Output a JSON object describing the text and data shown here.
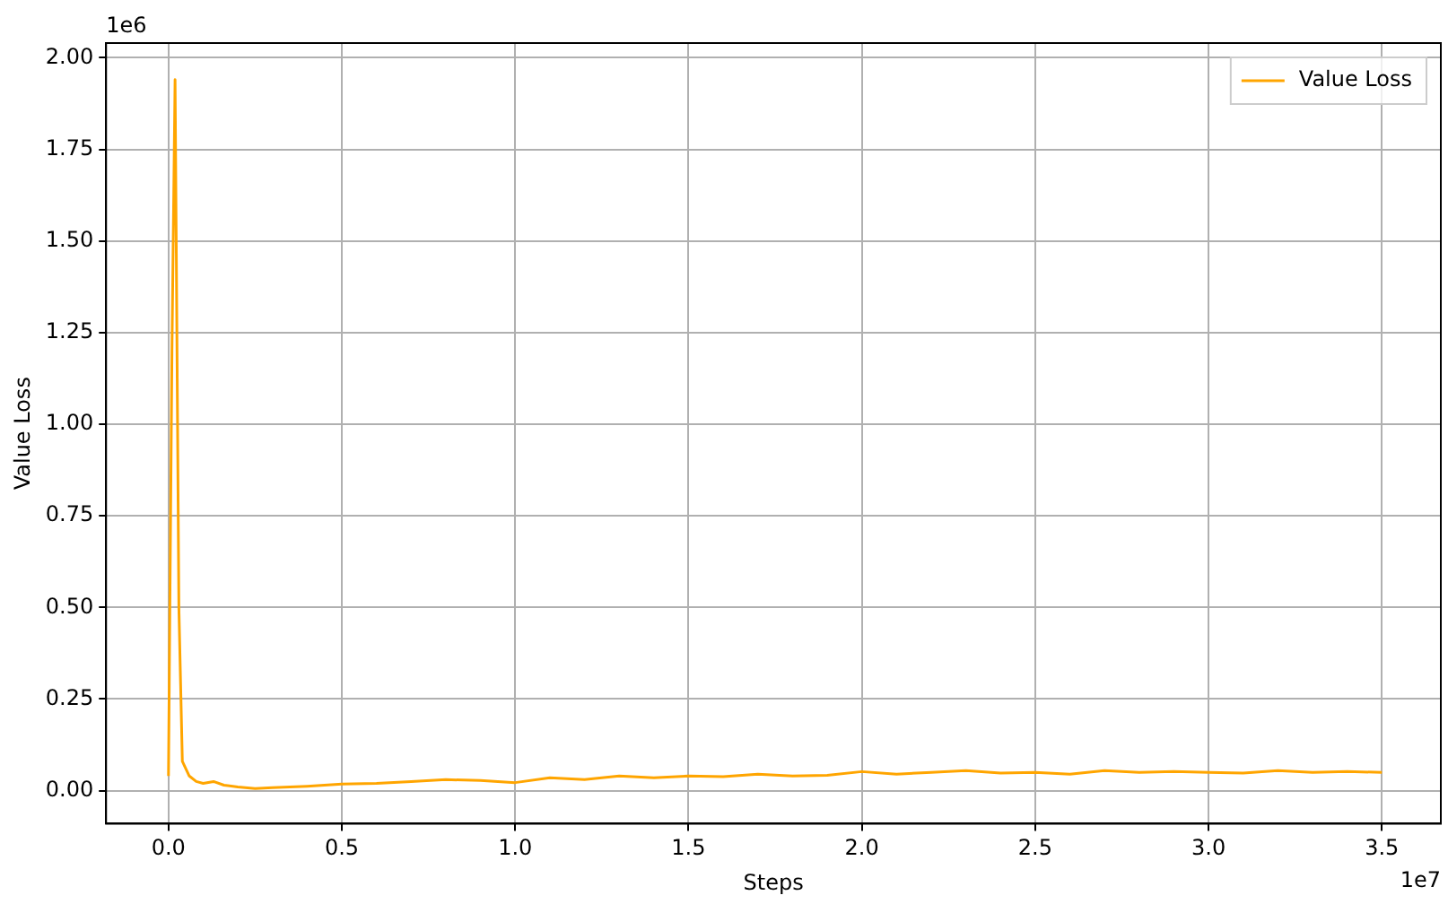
{
  "chart_data": {
    "type": "line",
    "xlabel": "Steps",
    "ylabel": "Value Loss",
    "annotations": [
      "1e6",
      "1e7"
    ],
    "xlim": [
      -0.18,
      3.67
    ],
    "ylim": [
      -0.09,
      2.04
    ],
    "xticks": [
      {
        "value": 0,
        "label": "0.0"
      },
      0.5,
      {
        "value": 1,
        "label": "1.0"
      },
      1.5,
      {
        "value": 2,
        "label": "2.0"
      },
      2.5,
      {
        "value": 3,
        "label": "3.0"
      },
      3.5
    ],
    "yticks": [
      {
        "value": 0,
        "label": "0.00"
      },
      0.25,
      {
        "value": 0.5,
        "label": "0.50"
      },
      0.75,
      {
        "value": 1,
        "label": "1.00"
      },
      1.25,
      {
        "value": 1.5,
        "label": "1.50"
      },
      1.75,
      {
        "value": 2,
        "label": "2.00"
      }
    ],
    "grid": true,
    "legend": "top right",
    "marker": "none",
    "line_style": "solid",
    "series": [
      {
        "name": "Value Loss",
        "color": "#ffa500",
        "x": [
          0,
          0.01,
          0.019,
          0.03,
          0.04,
          0.06,
          0.08,
          0.1,
          0.13,
          0.16,
          0.2,
          0.25,
          0.3,
          0.4,
          0.5,
          0.6,
          0.7,
          0.8,
          0.9,
          1.0,
          1.1,
          1.2,
          1.3,
          1.4,
          1.5,
          1.6,
          1.7,
          1.8,
          1.9,
          2.0,
          2.1,
          2.2,
          2.3,
          2.4,
          2.5,
          2.6,
          2.7,
          2.8,
          2.9,
          3.0,
          3.1,
          3.2,
          3.3,
          3.4,
          3.5
        ],
        "values": [
          0.04,
          1.2,
          1.94,
          0.5,
          0.08,
          0.04,
          0.025,
          0.02,
          0.025,
          0.015,
          0.01,
          0.006,
          0.008,
          0.012,
          0.018,
          0.02,
          0.025,
          0.03,
          0.028,
          0.022,
          0.035,
          0.03,
          0.04,
          0.035,
          0.04,
          0.038,
          0.045,
          0.04,
          0.042,
          0.052,
          0.045,
          0.05,
          0.055,
          0.048,
          0.05,
          0.045,
          0.055,
          0.05,
          0.052,
          0.05,
          0.048,
          0.055,
          0.05,
          0.052,
          0.05
        ]
      }
    ]
  }
}
